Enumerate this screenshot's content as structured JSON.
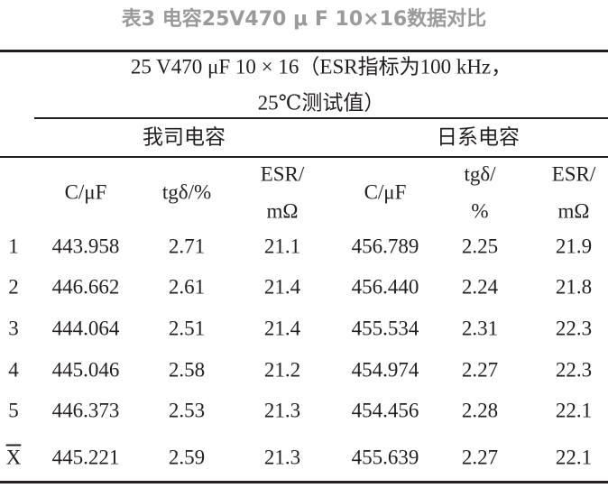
{
  "title": "表3 电容25V470 μ F 10×16数据对比",
  "table": {
    "caption_lines": [
      "25 V470 μF 10 × 16（ESR指标为100 kHz，",
      "25℃测试值）"
    ],
    "groups": [
      "我司电容",
      "日系电容"
    ],
    "columns": [
      [
        "C/μF"
      ],
      [
        "tgδ/%"
      ],
      [
        "ESR/",
        "mΩ"
      ],
      [
        "C/μF"
      ],
      [
        "tgδ/",
        "%"
      ],
      [
        "ESR/",
        "mΩ"
      ]
    ],
    "rows": [
      {
        "label": "1",
        "values": [
          "443.958",
          "2.71",
          "21.1",
          "456.789",
          "2.25",
          "21.9"
        ]
      },
      {
        "label": "2",
        "values": [
          "446.662",
          "2.61",
          "21.4",
          "456.440",
          "2.24",
          "21.8"
        ]
      },
      {
        "label": "3",
        "values": [
          "444.064",
          "2.51",
          "21.4",
          "455.534",
          "2.31",
          "22.3"
        ]
      },
      {
        "label": "4",
        "values": [
          "445.046",
          "2.58",
          "21.2",
          "454.974",
          "2.27",
          "22.3"
        ]
      },
      {
        "label": "5",
        "values": [
          "446.373",
          "2.53",
          "21.3",
          "454.456",
          "2.28",
          "22.1"
        ]
      },
      {
        "label": "X",
        "values": [
          "445.221",
          "2.59",
          "21.3",
          "455.639",
          "2.27",
          "22.1"
        ]
      }
    ]
  }
}
